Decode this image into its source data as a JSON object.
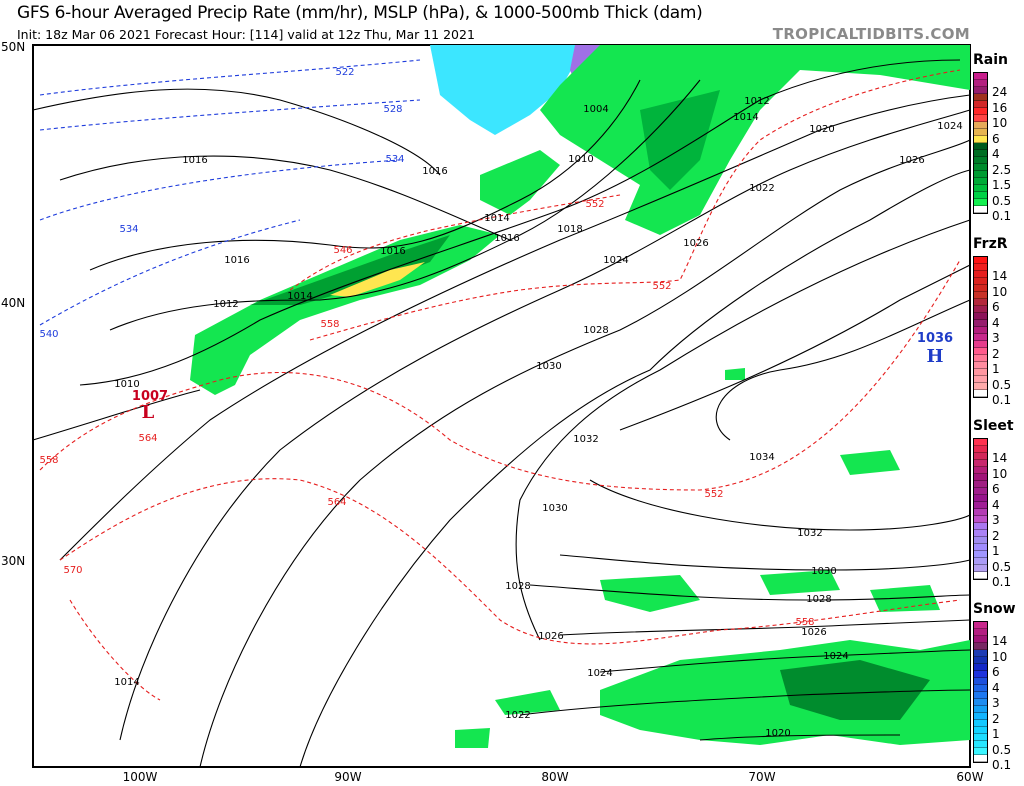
{
  "header": {
    "title": "GFS 6-hour Averaged Precip Rate (mm/hr), MSLP (hPa), & 1000-500mb Thick (dam)",
    "subtitle": "Init: 18z Mar 06 2021   Forecast Hour: [114]   valid at 12z Thu, Mar 11 2021",
    "brand": "TROPICALTIDBITS.COM"
  },
  "axes": {
    "lat_labels": [
      "50N",
      "40N",
      "30N"
    ],
    "lon_labels": [
      "100W",
      "90W",
      "80W",
      "70W",
      "60W"
    ]
  },
  "pressure_centers": [
    {
      "type": "L",
      "value": "1007",
      "color": "#c8001e"
    },
    {
      "type": "H",
      "value": "1036",
      "color": "#1e3cc8"
    }
  ],
  "isobar_labels": [
    "1016",
    "1016",
    "1016",
    "1016",
    "1014",
    "1014",
    "1016",
    "1018",
    "1012",
    "1010",
    "1004",
    "1010",
    "1012",
    "1014",
    "1020",
    "1024",
    "1026",
    "1022",
    "1026",
    "1024",
    "1028",
    "1030",
    "1032",
    "1034",
    "1030",
    "1032",
    "1030",
    "1028",
    "1026",
    "1024",
    "1028",
    "1026",
    "1024",
    "1022",
    "1020",
    "1014"
  ],
  "thickness_labels_red": [
    "546",
    "552",
    "552",
    "552",
    "558",
    "558",
    "564",
    "564",
    "570",
    "558"
  ],
  "thickness_labels_blue": [
    "522",
    "528",
    "534",
    "534",
    "540"
  ],
  "legends": [
    {
      "title": "Rain",
      "labels": [
        "24",
        "16",
        "10",
        "6",
        "4",
        "2.5",
        "1.5",
        "0.5",
        "0.1"
      ],
      "colors": [
        "#c81e8c",
        "#b42080",
        "#961e6e",
        "#a0321e",
        "#d22828",
        "#ff2828",
        "#ff4646",
        "#e6aa5a",
        "#e6b450",
        "#ffe650",
        "#005a1e",
        "#006e23",
        "#007d28",
        "#008c2d",
        "#009b32",
        "#00aa37",
        "#00be3c",
        "#00d246",
        "#14f050",
        "#ffffff"
      ]
    },
    {
      "title": "FrzR",
      "labels": [
        "14",
        "10",
        "6",
        "4",
        "3",
        "2",
        "1",
        "0.5",
        "0.1"
      ],
      "colors": [
        "#ff1414",
        "#f01e1e",
        "#e61e1e",
        "#dc231e",
        "#d22820",
        "#c83228",
        "#b4283c",
        "#a01e50",
        "#8c145a",
        "#961e6e",
        "#b41e7d",
        "#c8288c",
        "#e63c8c",
        "#ff5a8c",
        "#ff7896",
        "#ff8ca0",
        "#ff96a0",
        "#ffa0a8",
        "#ffaaaa",
        "#ffffff"
      ]
    },
    {
      "title": "Sleet",
      "labels": [
        "14",
        "10",
        "6",
        "4",
        "3",
        "2",
        "1",
        "0.5",
        "0.1"
      ],
      "colors": [
        "#ff3250",
        "#e62850",
        "#d2285a",
        "#c8286e",
        "#b41e78",
        "#a01478",
        "#a01e82",
        "#a01e8c",
        "#96148c",
        "#a01e96",
        "#b43cb4",
        "#be50c8",
        "#aa78f0",
        "#aa82f5",
        "#a08cf0",
        "#a08cff",
        "#a096ff",
        "#aa9bf5",
        "#b4a0f0",
        "#ffffff"
      ]
    },
    {
      "title": "Snow",
      "labels": [
        "14",
        "10",
        "6",
        "4",
        "3",
        "2",
        "1",
        "0.5",
        "0.1"
      ],
      "colors": [
        "#c8288c",
        "#b41e82",
        "#a01478",
        "#782864",
        "#1e3cb4",
        "#1432b4",
        "#1428c8",
        "#1e32dc",
        "#1e50dc",
        "#1e64e6",
        "#1e78f0",
        "#1e8cf0",
        "#14a0f5",
        "#14b4ff",
        "#14c8ff",
        "#14d2ff",
        "#1edcff",
        "#28e6ff",
        "#3cf5ff",
        "#ffffff"
      ]
    }
  ]
}
